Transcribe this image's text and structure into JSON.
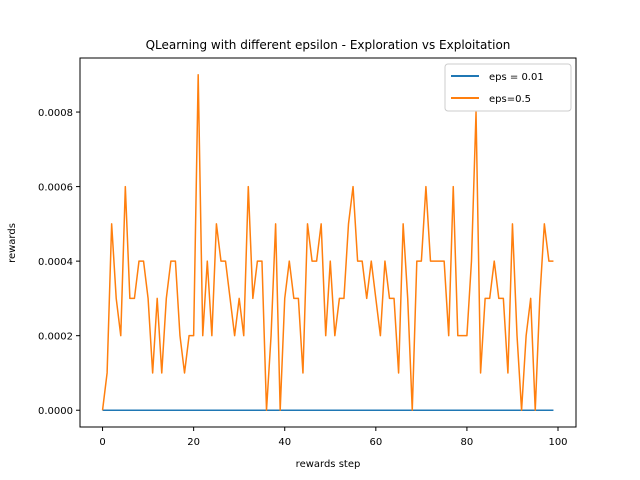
{
  "chart_data": {
    "type": "line",
    "title": "QLearning with different epsilon - Exploration vs Exploitation",
    "xlabel": "rewards step",
    "ylabel": "rewards",
    "xlim": [
      -4.95,
      103.95
    ],
    "ylim": [
      -4.5e-05,
      0.000945
    ],
    "xticks": [
      0,
      20,
      40,
      60,
      80,
      100
    ],
    "xtick_labels": [
      "0",
      "20",
      "40",
      "60",
      "80",
      "100"
    ],
    "yticks": [
      0,
      0.0002,
      0.0004,
      0.0006,
      0.0008
    ],
    "ytick_labels": [
      "0.0000",
      "0.0002",
      "0.0004",
      "0.0006",
      "0.0008"
    ],
    "grid": false,
    "legend_position": "upper right",
    "series": [
      {
        "name": "eps = 0.01",
        "color": "#1f77b4",
        "x_start": 0,
        "values": [
          0,
          0,
          0,
          0,
          0,
          0,
          0,
          0,
          0,
          0,
          0,
          0,
          0,
          0,
          0,
          0,
          0,
          0,
          0,
          0,
          0,
          0,
          0,
          0,
          0,
          0,
          0,
          0,
          0,
          0,
          0,
          0,
          0,
          0,
          0,
          0,
          0,
          0,
          0,
          0,
          0,
          0,
          0,
          0,
          0,
          0,
          0,
          0,
          0,
          0,
          0,
          0,
          0,
          0,
          0,
          0,
          0,
          0,
          0,
          0,
          0,
          0,
          0,
          0,
          0,
          0,
          0,
          0,
          0,
          0,
          0,
          0,
          0,
          0,
          0,
          0,
          0,
          0,
          0,
          0,
          0,
          0,
          0,
          0,
          0,
          0,
          0,
          0,
          0,
          0,
          0,
          0,
          0,
          0,
          0,
          0,
          0,
          0,
          0,
          0
        ]
      },
      {
        "name": "eps=0.5",
        "color": "#ff7f0e",
        "x_start": 0,
        "values": [
          0,
          0.0001,
          0.0005,
          0.0003,
          0.0002,
          0.0006,
          0.0003,
          0.0003,
          0.0004,
          0.0004,
          0.0003,
          0.0001,
          0.0003,
          0.0001,
          0.0003,
          0.0004,
          0.0004,
          0.0002,
          0.0001,
          0.0002,
          0.0002,
          0.0009,
          0.0002,
          0.0004,
          0.0002,
          0.0005,
          0.0004,
          0.0004,
          0.0003,
          0.0002,
          0.0003,
          0.0002,
          0.0006,
          0.0003,
          0.0004,
          0.0004,
          0,
          0.0002,
          0.0005,
          0,
          0.0003,
          0.0004,
          0.0003,
          0.0003,
          0.0001,
          0.0005,
          0.0004,
          0.0004,
          0.0005,
          0.0002,
          0.0004,
          0.0002,
          0.0003,
          0.0003,
          0.0005,
          0.0006,
          0.0004,
          0.0004,
          0.0003,
          0.0004,
          0.0003,
          0.0002,
          0.0004,
          0.0003,
          0.0003,
          0.0001,
          0.0005,
          0.0003,
          0,
          0.0004,
          0.0004,
          0.0006,
          0.0004,
          0.0004,
          0.0004,
          0.0004,
          0.0002,
          0.0006,
          0.0002,
          0.0002,
          0.0002,
          0.0004,
          0.0008,
          0.0001,
          0.0003,
          0.0003,
          0.0004,
          0.0003,
          0.0003,
          0.0001,
          0.0005,
          0.0002,
          0,
          0.0002,
          0.0003,
          0,
          0.0003,
          0.0005,
          0.0004,
          0.0004
        ]
      }
    ]
  }
}
